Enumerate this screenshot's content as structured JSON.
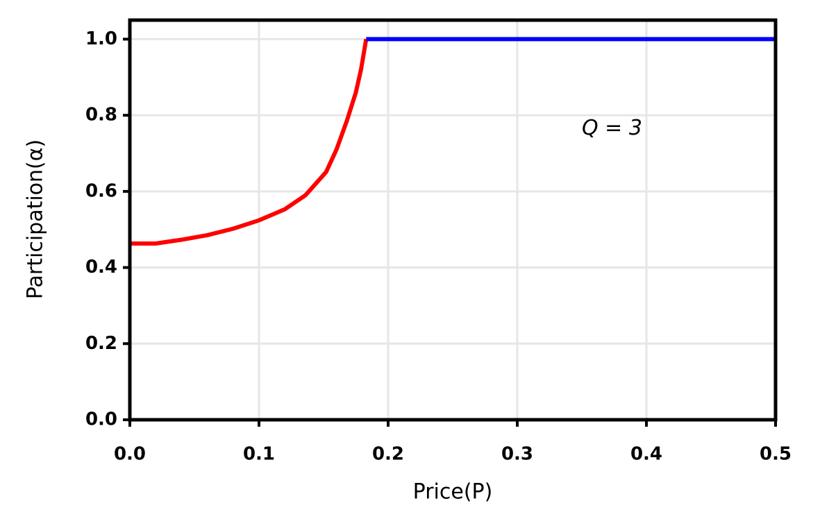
{
  "chart_data": {
    "type": "line",
    "xlabel": "Price(P)",
    "ylabel": "Participation(α)",
    "annotation": "Q = 3",
    "xlim": [
      0,
      0.5
    ],
    "ylim": [
      0,
      1.05
    ],
    "xticks": [
      {
        "value": 0,
        "label": "0.0"
      },
      0.1,
      0.2,
      0.3,
      0.4,
      0.5
    ],
    "yticks": [
      {
        "value": 0,
        "label": "0.0"
      },
      0.2,
      0.4,
      0.6,
      0.8,
      {
        "value": 1,
        "label": "1.0"
      }
    ],
    "grid": true,
    "series": [
      {
        "color": "#ff0000",
        "x": [
          0,
          0.02,
          0.04,
          0.06,
          0.08,
          0.1,
          0.12,
          0.136,
          0.152,
          0.16,
          0.168,
          0.175,
          0.179,
          0.183
        ],
        "values": [
          0.463,
          0.463,
          0.473,
          0.485,
          0.502,
          0.524,
          0.553,
          0.59,
          0.651,
          0.71,
          0.785,
          0.86,
          0.92,
          1.0
        ]
      },
      {
        "color": "#0000ff",
        "x": [
          0.183,
          0.5
        ],
        "values": [
          1.0,
          1.0
        ]
      }
    ]
  }
}
